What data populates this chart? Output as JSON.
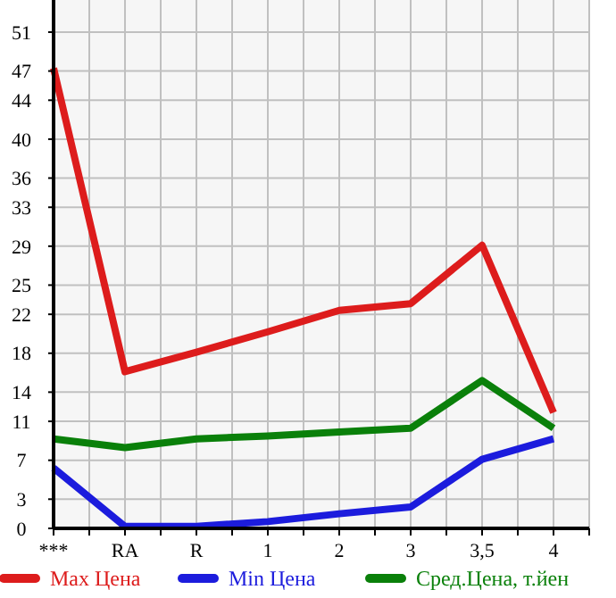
{
  "chart_data": {
    "type": "line",
    "categories": [
      "***",
      "RA",
      "R",
      "1",
      "2",
      "3",
      "3,5",
      "4"
    ],
    "series": [
      {
        "name": "Max Цена",
        "color": "#dd1c1c",
        "values": [
          47.3,
          16.1,
          18.1,
          20.2,
          22.4,
          23.1,
          29.1,
          11.9
        ]
      },
      {
        "name": "Min Цена",
        "color": "#1c1cdd",
        "values": [
          6.2,
          0.2,
          0.2,
          0.7,
          1.5,
          2.2,
          7.1,
          9.2
        ]
      },
      {
        "name": "Сред.Цена, т.йен",
        "color": "#0a800a",
        "values": [
          9.2,
          8.3,
          9.2,
          9.5,
          9.9,
          10.3,
          15.2,
          10.3
        ]
      }
    ],
    "ylim": [
      0,
      54.3
    ],
    "yticks": [
      0,
      3,
      7,
      11,
      14,
      18,
      22,
      25,
      29,
      33,
      36,
      40,
      44,
      47,
      51
    ],
    "grid": true,
    "legend": "bottom",
    "marker": "none",
    "line_style": "solid"
  }
}
